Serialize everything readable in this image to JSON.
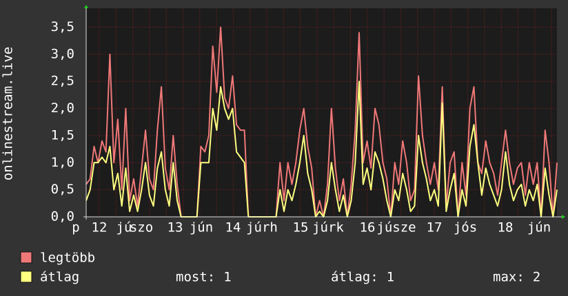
{
  "chart_data": {
    "type": "line",
    "y_axis_label": "onlinestream.live",
    "ylim": [
      0,
      3.85
    ],
    "yticks": [
      {
        "value": 0,
        "label": "0,0"
      },
      {
        "value": 0.5,
        "label": "0,5"
      },
      {
        "value": 1,
        "label": "1,0"
      },
      {
        "value": 1.5,
        "label": "1,5"
      },
      {
        "value": 2,
        "label": "2,0"
      },
      {
        "value": 2.5,
        "label": "2,5"
      },
      {
        "value": 3,
        "label": "3,0"
      },
      {
        "value": 3.5,
        "label": "3,5"
      }
    ],
    "x_tick_labels": [
      "p",
      "12",
      "jú",
      "szo",
      "13",
      "jún",
      "14",
      "júrh",
      "15",
      "júrk",
      "16",
      "júsze",
      "17",
      "jós",
      "18",
      "jún"
    ],
    "grid": true,
    "series": [
      {
        "name": "legtöbb",
        "color": "#f07878",
        "values": [
          0.6,
          0.7,
          1.3,
          1.0,
          1.4,
          1.2,
          3.0,
          1.0,
          1.8,
          0.5,
          2.0,
          0.3,
          0.7,
          0.2,
          0.9,
          1.6,
          0.7,
          0.5,
          1.6,
          2.4,
          0.9,
          0.5,
          1.5,
          0.6,
          0.0,
          0.0,
          0.0,
          0.0,
          0.0,
          1.3,
          1.2,
          1.5,
          3.15,
          2.3,
          3.5,
          2.2,
          2.0,
          2.6,
          1.7,
          1.6,
          1.6,
          0.0,
          0.0,
          0.0,
          0.0,
          0.0,
          0.0,
          0.0,
          0.0,
          1.0,
          0.3,
          1.0,
          0.6,
          1.0,
          1.6,
          2.0,
          1.3,
          0.9,
          0.0,
          0.3,
          0.0,
          0.6,
          2.0,
          0.9,
          0.3,
          0.7,
          0.0,
          0.6,
          1.6,
          3.4,
          1.0,
          1.4,
          0.9,
          2.0,
          1.7,
          1.0,
          0.7,
          0.0,
          1.0,
          0.6,
          1.4,
          1.0,
          0.3,
          0.5,
          2.6,
          1.5,
          1.0,
          0.6,
          1.0,
          0.5,
          2.4,
          0.2,
          1.0,
          1.2,
          0.0,
          1.0,
          0.4,
          2.0,
          2.4,
          1.0,
          0.8,
          1.4,
          1.0,
          0.8,
          0.4,
          1.0,
          1.6,
          1.0,
          0.6,
          0.9,
          1.0,
          0.4,
          1.0,
          0.6,
          1.0,
          0.0,
          1.6,
          1.0,
          0.0,
          1.0
        ]
      },
      {
        "name": "átlag",
        "color": "#ffff80",
        "values": [
          0.3,
          0.5,
          1.0,
          1.0,
          1.1,
          1.0,
          1.3,
          0.5,
          0.8,
          0.2,
          0.9,
          0.1,
          0.4,
          0.1,
          0.5,
          1.0,
          0.4,
          0.2,
          0.9,
          1.2,
          0.5,
          0.2,
          1.0,
          0.3,
          0.0,
          0.0,
          0.0,
          0.0,
          0.0,
          1.0,
          1.0,
          1.0,
          2.0,
          1.6,
          2.4,
          2.0,
          1.8,
          2.0,
          1.2,
          1.1,
          1.0,
          0.0,
          0.0,
          0.0,
          0.0,
          0.0,
          0.0,
          0.0,
          0.0,
          0.5,
          0.1,
          0.5,
          0.3,
          0.6,
          1.0,
          1.5,
          0.8,
          0.5,
          0.0,
          0.1,
          0.0,
          0.3,
          1.0,
          0.5,
          0.1,
          0.4,
          0.0,
          0.3,
          1.0,
          2.5,
          0.6,
          0.9,
          0.5,
          1.2,
          1.0,
          0.7,
          0.3,
          0.0,
          0.5,
          0.3,
          0.8,
          0.5,
          0.1,
          0.2,
          1.5,
          1.0,
          0.7,
          0.3,
          0.5,
          0.2,
          2.1,
          0.1,
          0.5,
          0.8,
          0.0,
          0.5,
          0.2,
          1.3,
          1.7,
          1.0,
          0.4,
          0.9,
          0.6,
          0.4,
          0.2,
          0.5,
          1.2,
          0.6,
          0.3,
          0.5,
          0.6,
          0.2,
          0.5,
          0.3,
          0.6,
          0.0,
          0.9,
          0.4,
          0.0,
          0.5
        ]
      }
    ],
    "stats": [
      {
        "label": "most:",
        "value": 1
      },
      {
        "label": "átlag:",
        "value": 1
      },
      {
        "label": "max:",
        "value": 2
      }
    ]
  }
}
